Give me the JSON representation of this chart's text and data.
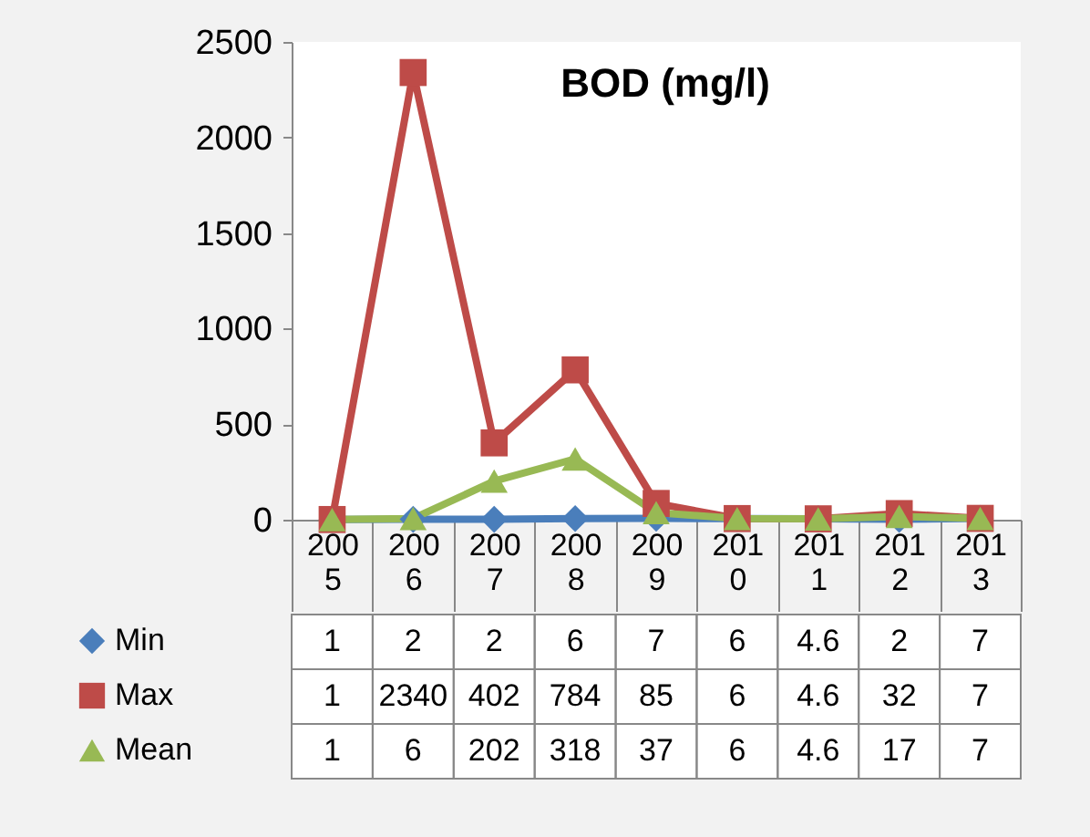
{
  "chart_data": {
    "type": "line",
    "title": "BOD (mg/l)",
    "categories": [
      "2005",
      "2006",
      "2007",
      "2008",
      "2009",
      "2010",
      "2011",
      "2012",
      "2013"
    ],
    "series": [
      {
        "name": "Min",
        "color": "#4a7ebb",
        "marker": "diamond",
        "values": [
          1,
          2,
          2,
          6,
          7,
          6,
          4.6,
          2,
          7
        ],
        "value_labels": [
          "1",
          "2",
          "2",
          "6",
          "7",
          "6",
          "4.6",
          "2",
          "7"
        ]
      },
      {
        "name": "Max",
        "color": "#be4b48",
        "marker": "square",
        "values": [
          1,
          2340,
          402,
          784,
          85,
          6,
          4.6,
          32,
          7
        ],
        "value_labels": [
          "1",
          "2340",
          "402",
          "784",
          "85",
          "6",
          "4.6",
          "32",
          "7"
        ]
      },
      {
        "name": "Mean",
        "color": "#98b954",
        "marker": "triangle",
        "values": [
          1,
          6,
          202,
          318,
          37,
          6,
          4.6,
          17,
          7
        ],
        "value_labels": [
          "1",
          "6",
          "202",
          "318",
          "37",
          "6",
          "4.6",
          "17",
          "7"
        ]
      }
    ],
    "ylim": [
      0,
      2500
    ],
    "yticks": [
      0,
      500,
      1000,
      1500,
      2000,
      2500
    ],
    "legend": "bottom"
  }
}
